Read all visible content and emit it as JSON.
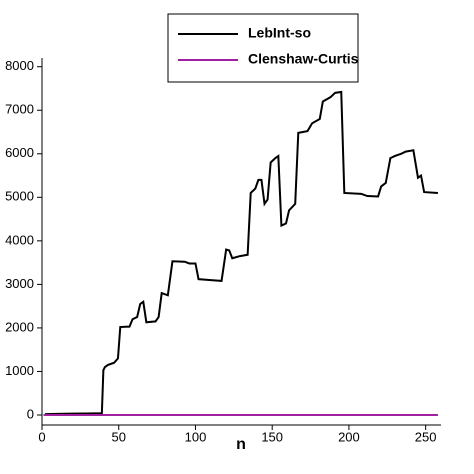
{
  "chart_data": {
    "type": "line",
    "xlabel": "n",
    "xlim": [
      0,
      260
    ],
    "ylim": [
      -230,
      8200
    ],
    "xticks": [
      0,
      50,
      100,
      150,
      200,
      250
    ],
    "yticks": [
      0,
      1000,
      2000,
      3000,
      4000,
      5000,
      6000,
      7000,
      8000
    ],
    "legend": "top-center",
    "series": [
      {
        "name": "LebInt-so",
        "color": "#000000",
        "x": [
          2,
          10,
          20,
          30,
          39,
          40,
          41,
          43,
          47,
          49.5,
          51,
          57,
          59,
          62,
          64,
          66,
          68,
          74,
          76,
          78,
          82,
          85,
          93,
          96,
          100,
          102,
          109,
          117,
          120,
          122,
          124,
          129,
          134,
          136,
          139,
          141,
          143,
          145,
          147,
          149,
          152,
          154,
          156,
          159,
          161,
          165,
          167,
          173,
          176,
          181,
          183,
          188,
          191,
          195,
          197,
          208,
          212,
          219,
          221,
          224,
          227,
          230,
          234,
          237,
          242,
          245,
          247,
          249,
          258
        ],
        "values": [
          20,
          25,
          30,
          35,
          40,
          1030,
          1100,
          1150,
          1200,
          1300,
          2020,
          2030,
          2200,
          2250,
          2550,
          2600,
          2130,
          2150,
          2250,
          2800,
          2750,
          3530,
          3520,
          3480,
          3480,
          3120,
          3100,
          3080,
          3800,
          3780,
          3600,
          3650,
          3680,
          5100,
          5200,
          5400,
          5400,
          4850,
          4950,
          5800,
          5900,
          5950,
          4350,
          4400,
          4700,
          4850,
          6480,
          6520,
          6700,
          6800,
          7200,
          7300,
          7400,
          7420,
          5100,
          5080,
          5030,
          5020,
          5250,
          5330,
          5900,
          5950,
          6000,
          6050,
          6080,
          5450,
          5500,
          5120,
          5100
        ]
      },
      {
        "name": "Clenshaw-Curtis",
        "color": "#a020a0",
        "x": [
          1,
          50,
          100,
          150,
          200,
          258
        ],
        "values": [
          0,
          0,
          0,
          0,
          0,
          0
        ]
      }
    ]
  }
}
